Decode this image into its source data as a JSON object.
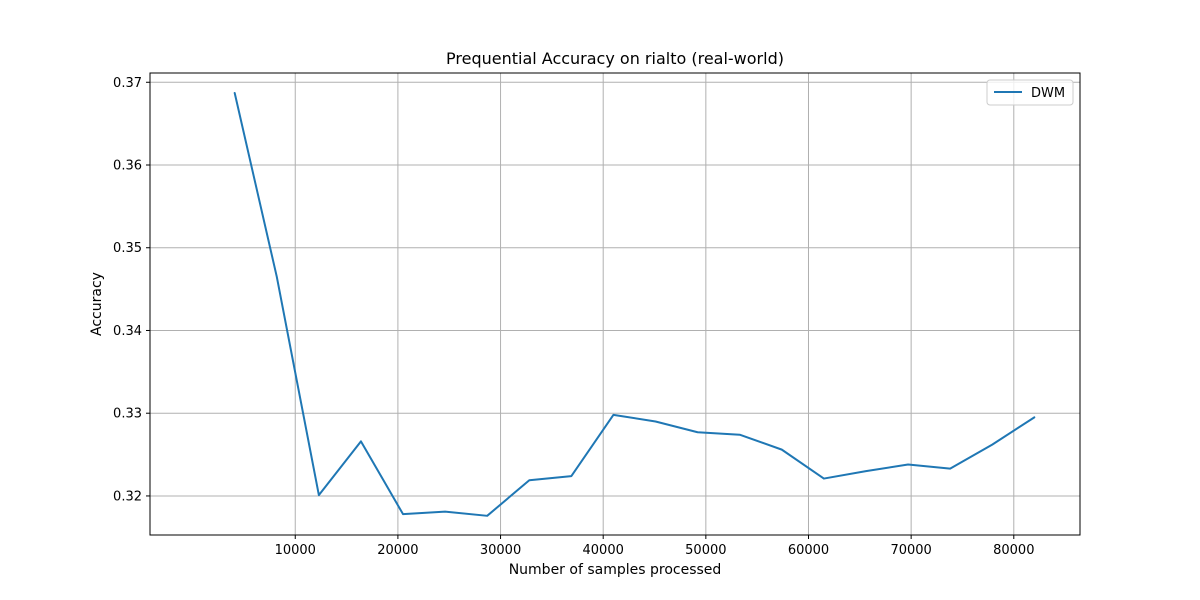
{
  "chart_data": {
    "type": "line",
    "title": "Prequential Accuracy on rialto (real-world)",
    "xlabel": "Number of samples processed",
    "ylabel": "Accuracy",
    "xlim": [
      -4150,
      86450
    ],
    "ylim": [
      0.31528,
      0.37112
    ],
    "xticks": [
      10000,
      20000,
      30000,
      40000,
      50000,
      60000,
      70000,
      80000
    ],
    "yticks": [
      0.32,
      0.33,
      0.34,
      0.35,
      0.36,
      0.37
    ],
    "grid": true,
    "legend_position": "top-right",
    "series": [
      {
        "name": "DWM",
        "color": "#1f77b4",
        "x": [
          4100,
          8200,
          12300,
          16400,
          20500,
          24600,
          28700,
          32800,
          36900,
          41000,
          45100,
          49200,
          53300,
          57400,
          61500,
          65600,
          69700,
          73800,
          77900,
          82000
        ],
        "y": [
          0.3687,
          0.3465,
          0.3201,
          0.3266,
          0.3178,
          0.3181,
          0.3176,
          0.3219,
          0.3224,
          0.3298,
          0.329,
          0.3277,
          0.3274,
          0.3256,
          0.3221,
          0.323,
          0.3238,
          0.3233,
          0.3262,
          0.3295
        ]
      }
    ]
  }
}
